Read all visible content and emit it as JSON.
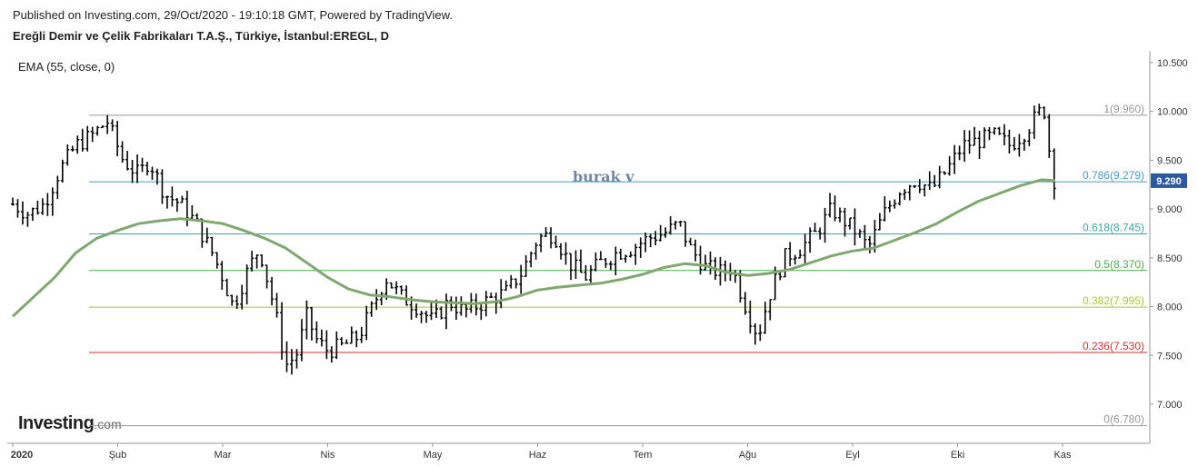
{
  "header": {
    "published": "Published on Investing.com, 29/Oct/2020 - 19:10:18 GMT, Powered by TradingView.",
    "symbol": "Ereğli Demir ve Çelik Fabrikaları T.A.Ş., Türkiye, İstanbul:EREGL, D"
  },
  "indicator_label": "EMA (55, close, 0)",
  "watermark": "burak v",
  "logo": {
    "name": "Investing",
    "suffix": ".com"
  },
  "colors": {
    "bars": "#000000",
    "ema": "#7fa86e",
    "fib_1": "#999999",
    "fib_0786": "#4a9bc4",
    "fib_0618": "#3aa6a6",
    "fib_05": "#4caf50",
    "fib_0382": "#a8c83c",
    "fib_0236": "#cc3333",
    "fib_0": "#999999",
    "price_badge": "#2c5aa0"
  },
  "chart_data": {
    "type": "ohlc",
    "xlabels": [
      {
        "label": "2020",
        "month": 0
      },
      {
        "label": "Şub",
        "month": 1
      },
      {
        "label": "Mar",
        "month": 2
      },
      {
        "label": "Nis",
        "month": 3
      },
      {
        "label": "May",
        "month": 4
      },
      {
        "label": "Haz",
        "month": 5
      },
      {
        "label": "Tem",
        "month": 6
      },
      {
        "label": "Ağu",
        "month": 7
      },
      {
        "label": "Eyl",
        "month": 8
      },
      {
        "label": "Eki",
        "month": 9
      },
      {
        "label": "Kas",
        "month": 10
      }
    ],
    "yticks": [
      "10.500",
      "10.000",
      "9.500",
      "9.000",
      "8.500",
      "8.000",
      "7.500",
      "7.000"
    ],
    "ylim": [
      6.6,
      10.62
    ],
    "last_price": "9.290",
    "fib_levels": [
      {
        "ratio": 1,
        "label": "1(9.960)",
        "value": 9.96,
        "color_key": "fib_1"
      },
      {
        "ratio": 0.786,
        "label": "0.786(9.279)",
        "value": 9.279,
        "color_key": "fib_0786"
      },
      {
        "ratio": 0.618,
        "label": "0.618(8.745)",
        "value": 8.745,
        "color_key": "fib_0618"
      },
      {
        "ratio": 0.5,
        "label": "0.5(8.370)",
        "value": 8.37,
        "color_key": "fib_05"
      },
      {
        "ratio": 0.382,
        "label": "0.382(7.995)",
        "value": 7.995,
        "color_key": "fib_0382"
      },
      {
        "ratio": 0.236,
        "label": "0.236(7.530)",
        "value": 7.53,
        "color_key": "fib_0236"
      },
      {
        "ratio": 0,
        "label": "0(6.780)",
        "value": 6.78,
        "color_key": "fib_0"
      }
    ],
    "price_path_by_month": [
      [
        0.0,
        9.05
      ],
      [
        0.15,
        8.95
      ],
      [
        0.3,
        9.05
      ],
      [
        0.45,
        9.4
      ],
      [
        0.6,
        9.65
      ],
      [
        0.75,
        9.75
      ],
      [
        0.9,
        9.9
      ],
      [
        1.05,
        9.5
      ],
      [
        1.2,
        9.35
      ],
      [
        1.3,
        9.5
      ],
      [
        1.45,
        9.15
      ],
      [
        1.6,
        9.05
      ],
      [
        1.75,
        8.85
      ],
      [
        1.9,
        8.55
      ],
      [
        2.0,
        8.3
      ],
      [
        2.1,
        8.0
      ],
      [
        2.25,
        8.4
      ],
      [
        2.35,
        8.6
      ],
      [
        2.5,
        7.95
      ],
      [
        2.6,
        7.4
      ],
      [
        2.7,
        7.5
      ],
      [
        2.8,
        7.9
      ],
      [
        2.9,
        7.65
      ],
      [
        3.0,
        7.55
      ],
      [
        3.15,
        7.6
      ],
      [
        3.3,
        7.7
      ],
      [
        3.45,
        8.05
      ],
      [
        3.55,
        8.3
      ],
      [
        3.7,
        8.1
      ],
      [
        3.85,
        8.0
      ],
      [
        4.0,
        7.85
      ],
      [
        4.15,
        8.05
      ],
      [
        4.3,
        7.95
      ],
      [
        4.5,
        8.05
      ],
      [
        4.7,
        8.15
      ],
      [
        4.85,
        8.35
      ],
      [
        5.0,
        8.7
      ],
      [
        5.15,
        8.75
      ],
      [
        5.3,
        8.45
      ],
      [
        5.45,
        8.3
      ],
      [
        5.6,
        8.45
      ],
      [
        5.75,
        8.55
      ],
      [
        5.9,
        8.6
      ],
      [
        6.05,
        8.7
      ],
      [
        6.2,
        8.75
      ],
      [
        6.35,
        8.85
      ],
      [
        6.45,
        8.6
      ],
      [
        6.6,
        8.4
      ],
      [
        6.75,
        8.35
      ],
      [
        6.85,
        8.4
      ],
      [
        7.0,
        7.95
      ],
      [
        7.1,
        7.7
      ],
      [
        7.2,
        8.1
      ],
      [
        7.35,
        8.5
      ],
      [
        7.5,
        8.6
      ],
      [
        7.65,
        8.75
      ],
      [
        7.8,
        9.0
      ],
      [
        7.95,
        8.85
      ],
      [
        8.05,
        8.75
      ],
      [
        8.15,
        8.6
      ],
      [
        8.3,
        8.95
      ],
      [
        8.45,
        9.2
      ],
      [
        8.6,
        9.3
      ],
      [
        8.75,
        9.2
      ],
      [
        8.9,
        9.4
      ],
      [
        9.05,
        9.65
      ],
      [
        9.2,
        9.7
      ],
      [
        9.35,
        9.75
      ],
      [
        9.5,
        9.65
      ],
      [
        9.65,
        9.8
      ],
      [
        9.75,
        9.95
      ],
      [
        9.82,
        10.05
      ],
      [
        9.88,
        9.55
      ],
      [
        9.92,
        9.3
      ]
    ],
    "ema_by_month": [
      [
        0.0,
        7.9
      ],
      [
        0.2,
        8.1
      ],
      [
        0.4,
        8.3
      ],
      [
        0.6,
        8.55
      ],
      [
        0.8,
        8.7
      ],
      [
        1.0,
        8.78
      ],
      [
        1.2,
        8.85
      ],
      [
        1.4,
        8.88
      ],
      [
        1.6,
        8.9
      ],
      [
        1.8,
        8.88
      ],
      [
        2.0,
        8.85
      ],
      [
        2.2,
        8.78
      ],
      [
        2.4,
        8.7
      ],
      [
        2.6,
        8.6
      ],
      [
        2.8,
        8.45
      ],
      [
        3.0,
        8.3
      ],
      [
        3.2,
        8.18
      ],
      [
        3.4,
        8.12
      ],
      [
        3.6,
        8.1
      ],
      [
        3.8,
        8.07
      ],
      [
        4.0,
        8.05
      ],
      [
        4.2,
        8.04
      ],
      [
        4.4,
        8.03
      ],
      [
        4.6,
        8.05
      ],
      [
        4.8,
        8.1
      ],
      [
        5.0,
        8.17
      ],
      [
        5.2,
        8.2
      ],
      [
        5.4,
        8.22
      ],
      [
        5.6,
        8.24
      ],
      [
        5.8,
        8.28
      ],
      [
        6.0,
        8.33
      ],
      [
        6.2,
        8.4
      ],
      [
        6.4,
        8.44
      ],
      [
        6.6,
        8.42
      ],
      [
        6.8,
        8.35
      ],
      [
        7.0,
        8.32
      ],
      [
        7.2,
        8.34
      ],
      [
        7.4,
        8.38
      ],
      [
        7.6,
        8.45
      ],
      [
        7.8,
        8.52
      ],
      [
        8.0,
        8.57
      ],
      [
        8.2,
        8.6
      ],
      [
        8.4,
        8.68
      ],
      [
        8.6,
        8.76
      ],
      [
        8.8,
        8.85
      ],
      [
        9.0,
        8.97
      ],
      [
        9.2,
        9.08
      ],
      [
        9.4,
        9.16
      ],
      [
        9.6,
        9.24
      ],
      [
        9.8,
        9.3
      ],
      [
        9.93,
        9.29
      ]
    ]
  }
}
